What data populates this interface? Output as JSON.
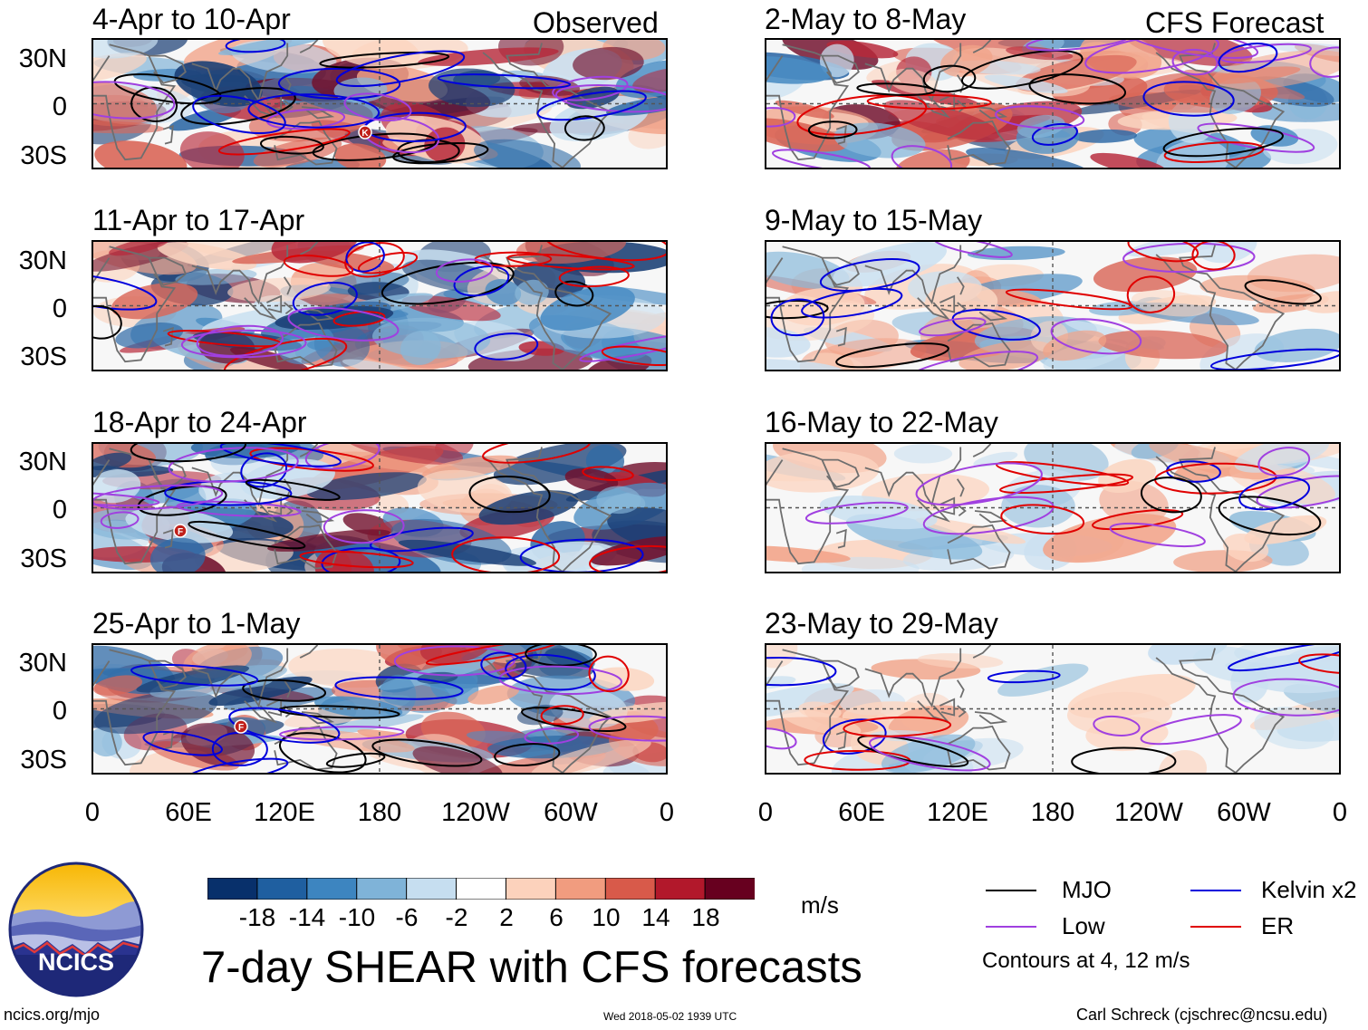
{
  "main_title": "7-day SHEAR with CFS forecasts",
  "left_column_tag": "Observed",
  "right_column_tag": "CFS Forecast",
  "left_panels": [
    {
      "period": "4-Apr to 10-Apr",
      "storms": [
        "K"
      ]
    },
    {
      "period": "11-Apr to 17-Apr",
      "storms": []
    },
    {
      "period": "18-Apr to 24-Apr",
      "storms": [
        "F"
      ]
    },
    {
      "period": "25-Apr to 1-May",
      "storms": [
        "F"
      ]
    }
  ],
  "right_panels": [
    {
      "period": "2-May to 8-May"
    },
    {
      "period": "9-May to 15-May"
    },
    {
      "period": "16-May to 22-May"
    },
    {
      "period": "23-May to 29-May"
    }
  ],
  "lat_labels": [
    "30N",
    "0",
    "30S"
  ],
  "lon_labels": [
    "0",
    "60E",
    "120E",
    "180",
    "120W",
    "60W",
    "0"
  ],
  "colorbar": {
    "ticks": [
      "-18",
      "-14",
      "-10",
      "-6",
      "-2",
      "2",
      "6",
      "10",
      "14",
      "18"
    ],
    "units": "m/s",
    "colors": [
      "#08306b",
      "#1f5fa0",
      "#3d85c0",
      "#7fb3d8",
      "#c6def0",
      "#ffffff",
      "#fcd2bc",
      "#f19c7f",
      "#d85a4a",
      "#b2182b",
      "#67001f"
    ]
  },
  "legend": {
    "items": [
      {
        "label": "MJO",
        "color": "#000000"
      },
      {
        "label": "Kelvin x2",
        "color": "#0000dd"
      },
      {
        "label": "Low",
        "color": "#a040e0"
      },
      {
        "label": "ER",
        "color": "#e00000"
      }
    ],
    "note": "Contours at 4, 12 m/s"
  },
  "logo": {
    "text": "NCICS"
  },
  "footer": {
    "left": "ncics.org/mjo",
    "center": "Wed 2018-05-02 1939 UTC",
    "right": "Carl Schreck (cjschrec@ncsu.edu)"
  }
}
